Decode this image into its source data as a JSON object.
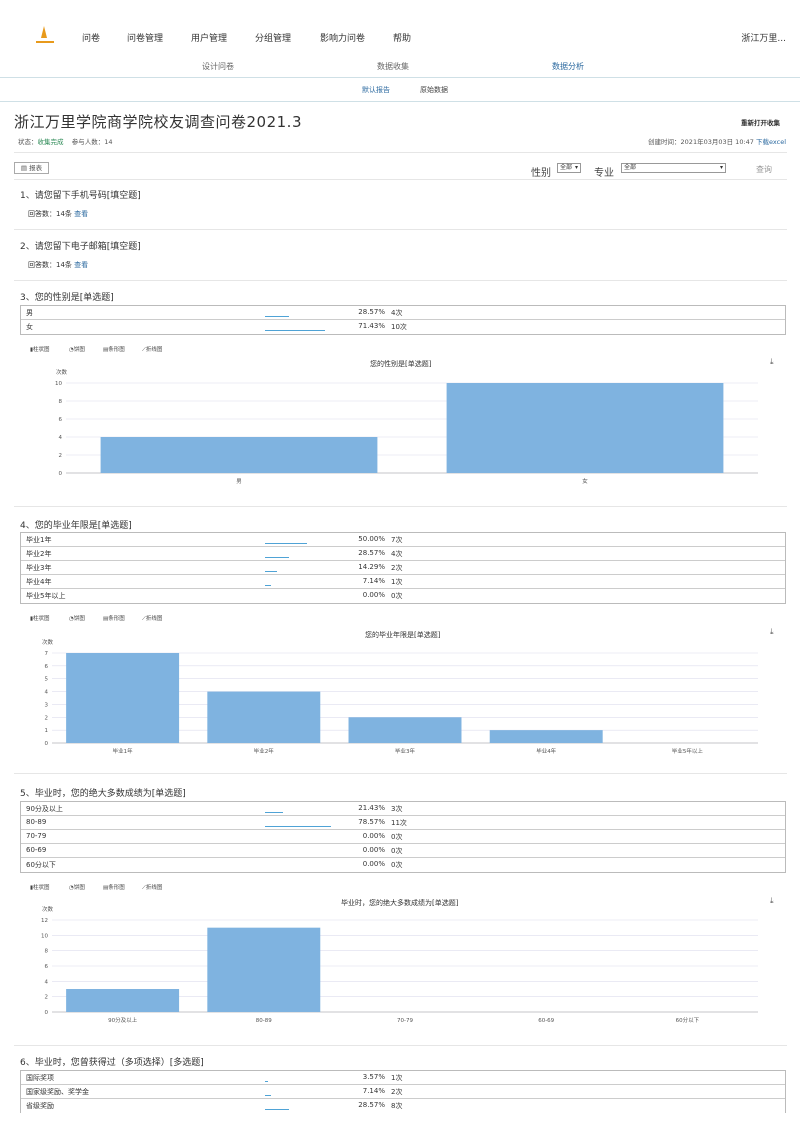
{
  "nav": {
    "items": [
      "问卷",
      "问卷管理",
      "用户管理",
      "分组管理",
      "影响力问卷",
      "帮助"
    ],
    "user": "浙江万里..."
  },
  "subnav": {
    "items": [
      "设计问卷",
      "数据收集",
      "数据分析"
    ],
    "active": 2
  },
  "subsub": {
    "items": [
      "默认报告",
      "原始数据"
    ],
    "active": 0
  },
  "survey": {
    "title": "浙江万里学院商学院校友调查问卷2021.3",
    "reopen": "重新打开收集",
    "status_label": "状态：",
    "status": "收集完成",
    "count_label": "参与人数：",
    "count": "14",
    "created_label": "创建时间：",
    "created": "2021年03月03日 10:47",
    "export": "下载excel"
  },
  "toolbar": {
    "report": "报表",
    "gender_label": "性别",
    "gender_value": "全部",
    "major_label": "专业",
    "major_value": "全部",
    "query": "查询"
  },
  "chart_types": [
    "柱状图",
    "饼图",
    "条形图",
    "折线图"
  ],
  "questions": [
    {
      "title": "1、请您留下手机号码[填空题]",
      "answer_label": "回答数：",
      "answer_count": "14条",
      "view": "查看"
    },
    {
      "title": "2、请您留下电子邮箱[填空题]",
      "answer_label": "回答数：",
      "answer_count": "14条",
      "view": "查看"
    },
    {
      "title": "3、您的性别是[单选题]",
      "options": [
        {
          "label": "男",
          "pct": "28.57%",
          "count": "4次",
          "value": 0.2857
        },
        {
          "label": "女",
          "pct": "71.43%",
          "count": "10次",
          "value": 0.7143
        }
      ],
      "chart_data": {
        "type": "bar",
        "title": "您的性别是[单选题]",
        "ylabel": "次数",
        "categories": [
          "男",
          "女"
        ],
        "values": [
          4,
          10
        ],
        "ylim": [
          0,
          10
        ],
        "yticks": [
          0,
          2,
          4,
          6,
          8,
          10
        ]
      }
    },
    {
      "title": "4、您的毕业年限是[单选题]",
      "options": [
        {
          "label": "毕业1年",
          "pct": "50.00%",
          "count": "7次",
          "value": 0.5
        },
        {
          "label": "毕业2年",
          "pct": "28.57%",
          "count": "4次",
          "value": 0.2857
        },
        {
          "label": "毕业3年",
          "pct": "14.29%",
          "count": "2次",
          "value": 0.1429
        },
        {
          "label": "毕业4年",
          "pct": "7.14%",
          "count": "1次",
          "value": 0.0714
        },
        {
          "label": "毕业5年以上",
          "pct": "0.00%",
          "count": "0次",
          "value": 0
        }
      ],
      "chart_data": {
        "type": "bar",
        "title": "您的毕业年限是[单选题]",
        "ylabel": "次数",
        "categories": [
          "毕业1年",
          "毕业2年",
          "毕业3年",
          "毕业4年",
          "毕业5年以上"
        ],
        "values": [
          7,
          4,
          2,
          1,
          0
        ],
        "ylim": [
          0,
          7
        ],
        "yticks": [
          0,
          1,
          2,
          3,
          4,
          5,
          6,
          7
        ]
      }
    },
    {
      "title": "5、毕业时，您的绝大多数成绩为[单选题]",
      "options": [
        {
          "label": "90分及以上",
          "pct": "21.43%",
          "count": "3次",
          "value": 0.2143
        },
        {
          "label": "80-89",
          "pct": "78.57%",
          "count": "11次",
          "value": 0.7857
        },
        {
          "label": "70-79",
          "pct": "0.00%",
          "count": "0次",
          "value": 0
        },
        {
          "label": "60-69",
          "pct": "0.00%",
          "count": "0次",
          "value": 0
        },
        {
          "label": "60分以下",
          "pct": "0.00%",
          "count": "0次",
          "value": 0
        }
      ],
      "chart_data": {
        "type": "bar",
        "title": "毕业时，您的绝大多数成绩为[单选题]",
        "ylabel": "次数",
        "categories": [
          "90分及以上",
          "80-89",
          "70-79",
          "60-69",
          "60分以下"
        ],
        "values": [
          3,
          11,
          0,
          0,
          0
        ],
        "ylim": [
          0,
          12
        ],
        "yticks": [
          0,
          2,
          4,
          6,
          8,
          10,
          12
        ]
      }
    },
    {
      "title": "6、毕业时，您曾获得过（多项选择）[多选题]",
      "options": [
        {
          "label": "国际奖项",
          "pct": "3.57%",
          "count": "1次",
          "value": 0.0357
        },
        {
          "label": "国家级奖励、奖学金",
          "pct": "7.14%",
          "count": "2次",
          "value": 0.0714
        },
        {
          "label": "省级奖励",
          "pct": "28.57%",
          "count": "8次",
          "value": 0.2857
        }
      ]
    }
  ]
}
